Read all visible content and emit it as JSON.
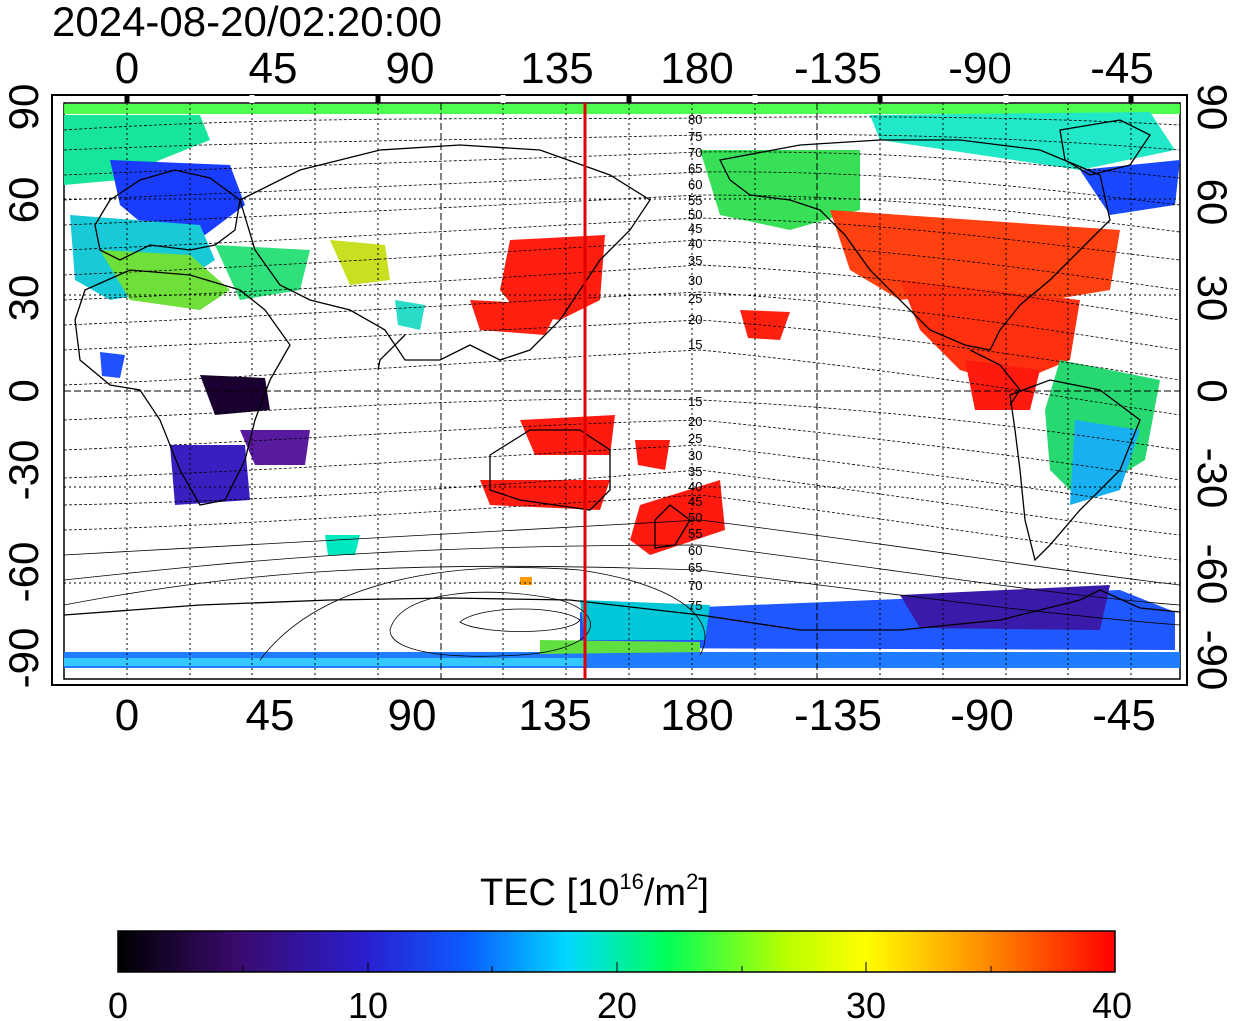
{
  "title": "2024-08-20/02:20:00",
  "map": {
    "top_lon_labels": [
      "0",
      "45",
      "90",
      "135",
      "180",
      "-135",
      "-90",
      "-45"
    ],
    "bottom_lon_labels": [
      "0",
      "45",
      "90",
      "135",
      "180",
      "-135",
      "-90",
      "-45"
    ],
    "left_lat_labels": [
      "90",
      "60",
      "30",
      "0",
      "-30",
      "-60",
      "-90"
    ],
    "right_lat_labels": [
      "90",
      "60",
      "30",
      "0",
      "-30",
      "-60",
      "-90"
    ],
    "contour_labels_north": [
      "80",
      "75",
      "70",
      "65",
      "60",
      "55",
      "50",
      "45",
      "40",
      "35",
      "30",
      "25",
      "20",
      "15"
    ],
    "contour_labels_south": [
      "15",
      "20",
      "25",
      "30",
      "35",
      "40",
      "45",
      "50",
      "55",
      "60",
      "65",
      "70",
      "75"
    ],
    "terminator_line_color": "#e00000"
  },
  "colorbar": {
    "label_main": "TEC  [10",
    "label_exp1": "16",
    "label_mid": "/m",
    "label_exp2": "2",
    "label_end": "]",
    "tick_labels": [
      "0",
      "10",
      "20",
      "30",
      "40"
    ],
    "colors": [
      "#000000",
      "#3a0a6e",
      "#2a1fd0",
      "#0b5cff",
      "#00d8ff",
      "#00ff5a",
      "#b8ff00",
      "#ffff00",
      "#ff8c00",
      "#ff0000"
    ]
  }
}
